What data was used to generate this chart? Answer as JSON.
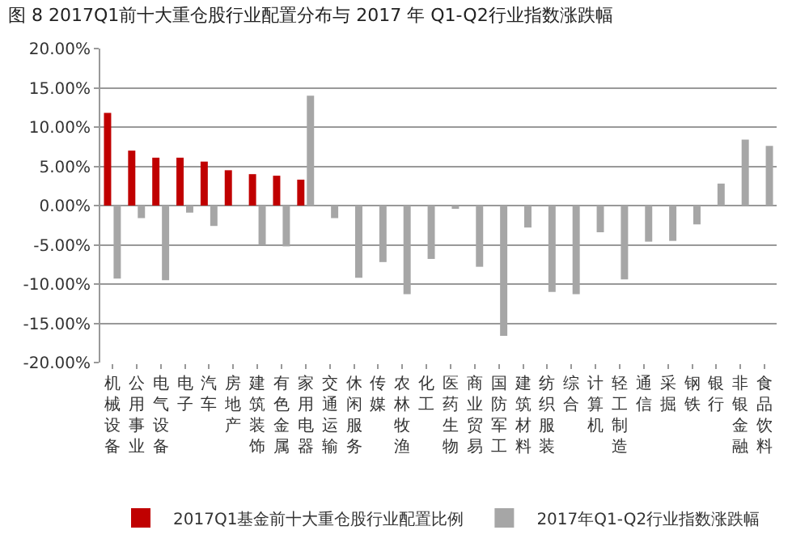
{
  "chart_data": {
    "type": "bar",
    "title": "图 8 2017Q1前十大重仓股行业配置分布与 2017 年 Q1-Q2行业指数涨跌幅",
    "categories": [
      "机械设备",
      "公用事业",
      "电气设备",
      "电子",
      "汽车",
      "房地产",
      "建筑装饰",
      "有色金属",
      "家用电器",
      "交通运输",
      "休闲服务",
      "传媒",
      "农林牧渔",
      "化工",
      "医药生物",
      "商业贸易",
      "国防军工",
      "建筑材料",
      "纺织服装",
      "综合",
      "计算机",
      "轻工制造",
      "通信",
      "采掘",
      "钢铁",
      "银行",
      "非银金融",
      "食品饮料"
    ],
    "series": [
      {
        "name": "2017Q1基金前十大重仓股行业配置比例",
        "color": "#c00000",
        "values": [
          11.8,
          7.0,
          6.1,
          6.1,
          5.6,
          4.5,
          4.0,
          3.8,
          3.3,
          null,
          null,
          null,
          null,
          null,
          null,
          null,
          null,
          null,
          null,
          null,
          null,
          null,
          null,
          null,
          null,
          null,
          null,
          null
        ]
      },
      {
        "name": "2017年Q1-Q2行业指数涨跌幅",
        "color": "#a6a6a6",
        "values": [
          -9.3,
          -1.6,
          -9.5,
          -0.9,
          -2.6,
          null,
          -5.0,
          -5.2,
          14.0,
          -1.6,
          -9.2,
          -7.2,
          -11.3,
          -6.8,
          -0.3,
          -7.8,
          -16.6,
          -2.8,
          -11.0,
          -11.3,
          -3.4,
          -9.4,
          -4.6,
          -4.5,
          -2.4,
          2.8,
          8.4,
          7.6
        ]
      }
    ],
    "ylim": [
      -20,
      20
    ],
    "yticks": [
      {
        "value": -20,
        "label": "-20.00%"
      },
      {
        "value": -15,
        "label": "-15.00%"
      },
      {
        "value": -10,
        "label": "-10.00%"
      },
      {
        "value": -5,
        "label": "-5.00%"
      },
      {
        "value": 0,
        "label": "0.00%"
      },
      {
        "value": 5,
        "label": "5.00%"
      },
      {
        "value": 10,
        "label": "10.00%"
      },
      {
        "value": 15,
        "label": "15.00%"
      },
      {
        "value": 20,
        "label": "20.00%"
      }
    ],
    "grid": "y",
    "legend": "bottom"
  }
}
